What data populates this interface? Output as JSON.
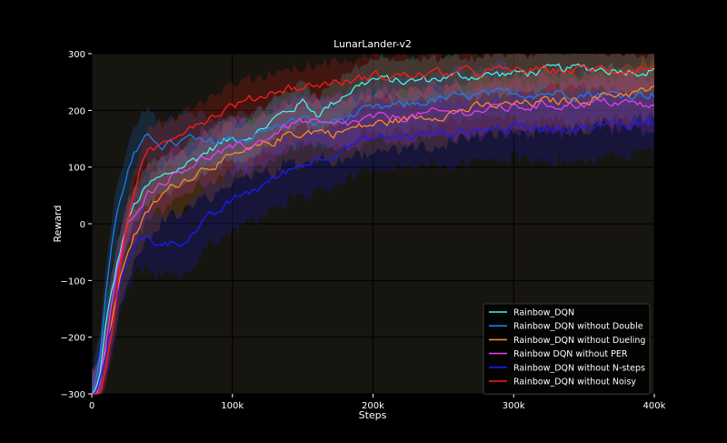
{
  "chart_data": {
    "type": "line",
    "title": "LunarLander-v2",
    "xlabel": "Steps",
    "ylabel": "Reward",
    "xlim": [
      0,
      400000
    ],
    "ylim": [
      -300,
      300
    ],
    "x_ticks": [
      0,
      100000,
      200000,
      300000,
      400000
    ],
    "x_tick_labels": [
      "0",
      "100k",
      "200k",
      "300k",
      "400k"
    ],
    "y_ticks": [
      -300,
      -200,
      -100,
      0,
      100,
      200,
      300
    ],
    "y_tick_labels": [
      "−300",
      "−200",
      "−100",
      "0",
      "100",
      "200",
      "300"
    ],
    "grid": true,
    "legend_position": "lower-right",
    "colors": {
      "figure_background": "#000000",
      "plot_background": "#17150f",
      "grid": "#000000",
      "text": "#ffffff"
    },
    "series": [
      {
        "name": "Rainbow_DQN",
        "color": "#40f5e8",
        "x": [
          0,
          5000,
          10000,
          15000,
          20000,
          25000,
          30000,
          35000,
          40000,
          45000,
          50000,
          60000,
          70000,
          80000,
          90000,
          100000,
          110000,
          120000,
          130000,
          140000,
          150000,
          160000,
          170000,
          180000,
          190000,
          200000,
          225000,
          250000,
          275000,
          300000,
          325000,
          350000,
          375000,
          400000
        ],
        "y": [
          -310,
          -280,
          -180,
          -110,
          -50,
          0,
          30,
          50,
          65,
          75,
          80,
          95,
          110,
          125,
          140,
          150,
          155,
          165,
          185,
          200,
          215,
          195,
          210,
          230,
          245,
          255,
          250,
          258,
          262,
          265,
          270,
          275,
          272,
          270
        ],
        "band": 35
      },
      {
        "name": "Rainbow_DQN without Double",
        "color": "#1e7df0",
        "x": [
          0,
          5000,
          10000,
          15000,
          20000,
          25000,
          30000,
          35000,
          40000,
          45000,
          50000,
          60000,
          70000,
          80000,
          90000,
          100000,
          110000,
          120000,
          130000,
          140000,
          150000,
          160000,
          170000,
          180000,
          190000,
          200000,
          225000,
          250000,
          275000,
          300000,
          325000,
          350000,
          375000,
          400000
        ],
        "y": [
          -310,
          -250,
          -120,
          -20,
          40,
          90,
          120,
          135,
          150,
          150,
          140,
          140,
          150,
          140,
          145,
          150,
          150,
          160,
          170,
          180,
          185,
          175,
          180,
          185,
          195,
          200,
          210,
          220,
          225,
          230,
          232,
          230,
          228,
          230
        ],
        "band": 45
      },
      {
        "name": "Rainbow_DQN without Dueling",
        "color": "#ff8a1a",
        "x": [
          0,
          5000,
          10000,
          15000,
          20000,
          25000,
          30000,
          35000,
          40000,
          45000,
          50000,
          60000,
          70000,
          80000,
          90000,
          100000,
          110000,
          120000,
          130000,
          140000,
          150000,
          160000,
          170000,
          180000,
          190000,
          200000,
          225000,
          250000,
          275000,
          300000,
          325000,
          350000,
          375000,
          400000
        ],
        "y": [
          -310,
          -290,
          -230,
          -160,
          -100,
          -50,
          -20,
          0,
          20,
          35,
          50,
          70,
          85,
          100,
          110,
          115,
          125,
          135,
          145,
          160,
          160,
          165,
          160,
          165,
          170,
          175,
          185,
          195,
          205,
          210,
          215,
          220,
          230,
          235
        ],
        "band": 50
      },
      {
        "name": "Rainbow DQN without PER",
        "color": "#e83ee8",
        "x": [
          0,
          5000,
          10000,
          15000,
          20000,
          25000,
          30000,
          35000,
          40000,
          45000,
          50000,
          60000,
          70000,
          80000,
          90000,
          100000,
          110000,
          120000,
          130000,
          140000,
          150000,
          160000,
          170000,
          180000,
          190000,
          200000,
          225000,
          250000,
          275000,
          300000,
          325000,
          350000,
          375000,
          400000
        ],
        "y": [
          -310,
          -290,
          -210,
          -130,
          -60,
          -10,
          20,
          40,
          55,
          65,
          75,
          90,
          105,
          115,
          125,
          130,
          135,
          145,
          160,
          175,
          180,
          175,
          170,
          175,
          180,
          185,
          190,
          195,
          200,
          205,
          210,
          212,
          215,
          205
        ],
        "band": 45
      },
      {
        "name": "Rainbow_DQN without N-steps",
        "color": "#1a1aff",
        "x": [
          0,
          5000,
          10000,
          15000,
          20000,
          25000,
          30000,
          35000,
          40000,
          45000,
          50000,
          60000,
          70000,
          80000,
          90000,
          100000,
          110000,
          120000,
          130000,
          140000,
          150000,
          160000,
          170000,
          180000,
          190000,
          200000,
          225000,
          250000,
          275000,
          300000,
          325000,
          350000,
          375000,
          400000
        ],
        "y": [
          -310,
          -290,
          -230,
          -170,
          -110,
          -60,
          -40,
          -30,
          -30,
          -35,
          -30,
          -35,
          -20,
          0,
          20,
          40,
          55,
          65,
          80,
          95,
          105,
          115,
          125,
          135,
          145,
          150,
          155,
          160,
          165,
          170,
          172,
          170,
          175,
          180
        ],
        "band": 55
      },
      {
        "name": "Rainbow_DQN without Noisy",
        "color": "#ff1a1a",
        "x": [
          0,
          5000,
          10000,
          15000,
          20000,
          25000,
          30000,
          35000,
          40000,
          45000,
          50000,
          60000,
          70000,
          80000,
          90000,
          100000,
          110000,
          120000,
          130000,
          140000,
          150000,
          160000,
          170000,
          180000,
          190000,
          200000,
          225000,
          250000,
          275000,
          300000,
          325000,
          350000,
          375000,
          400000
        ],
        "y": [
          -320,
          -300,
          -260,
          -180,
          -80,
          0,
          60,
          100,
          120,
          130,
          140,
          160,
          175,
          185,
          195,
          210,
          215,
          225,
          235,
          240,
          240,
          245,
          250,
          250,
          255,
          260,
          262,
          265,
          268,
          270,
          270,
          272,
          272,
          275
        ],
        "band": 35
      }
    ]
  }
}
